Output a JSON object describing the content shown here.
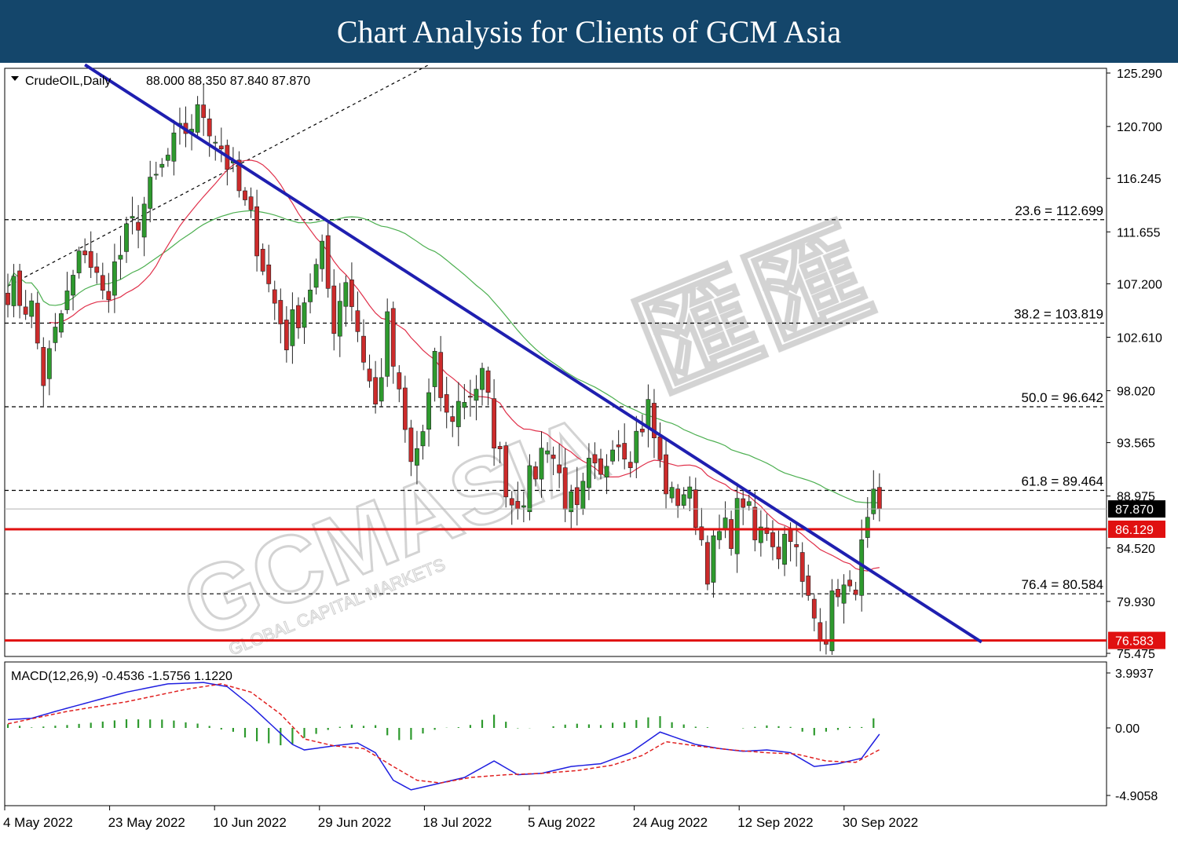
{
  "banner": {
    "title": "Chart Analysis for Clients of GCM Asia"
  },
  "watermark": {
    "logo": "GCMASIA",
    "tagline": "GLOBAL CAPITAL MARKETS",
    "chinese": "匯匯"
  },
  "chart_data": [
    {
      "type": "candlestick",
      "symbol_label": "CrudeOIL,Daily",
      "ohlc_label": "88.000 88.350 87.840 87.870",
      "y_ticks": [
        "125.290",
        "120.700",
        "116.245",
        "111.655",
        "107.200",
        "102.610",
        "98.020",
        "93.565",
        "88.975",
        "84.520",
        "79.930",
        "75.475"
      ],
      "ylim": [
        75.475,
        125.29
      ],
      "x_ticks": [
        "4 May 2022",
        "23 May 2022",
        "10 Jun 2022",
        "29 Jun 2022",
        "18 Jul 2022",
        "5 Aug 2022",
        "24 Aug 2022",
        "12 Sep 2022",
        "30 Sep 2022"
      ],
      "last_price": "87.870",
      "fib_levels": [
        {
          "label": "23.6 = 112.699",
          "value": 112.699
        },
        {
          "label": "38.2 = 103.819",
          "value": 103.819
        },
        {
          "label": "50.0 = 96.642",
          "value": 96.642
        },
        {
          "label": "61.8 = 89.464",
          "value": 89.464
        },
        {
          "label": "76.4 = 80.584",
          "value": 80.584
        }
      ],
      "support_resistance": [
        {
          "label": "86.129",
          "value": 86.129
        },
        {
          "label": "76.583",
          "value": 76.583
        }
      ],
      "trendline": {
        "start": [
          13,
          126.0
        ],
        "end": [
          147,
          79.0
        ]
      },
      "dashed_trendline": {
        "start": [
          0,
          107.0
        ],
        "end": [
          71,
          126.0
        ]
      },
      "colors": {
        "bull": "#2e9a2e",
        "bear": "#cc2b2b",
        "ma_fast": "#e0304a",
        "ma_slow": "#4caf50",
        "trendline": "#1f1fb0",
        "levels": "#e01010"
      },
      "close_anchors": [
        [
          0,
          107.0
        ],
        [
          4,
          105.0
        ],
        [
          6,
          99.0
        ],
        [
          9,
          104.5
        ],
        [
          13,
          110.5
        ],
        [
          16,
          106.0
        ],
        [
          20,
          111.0
        ],
        [
          24,
          115.0
        ],
        [
          27,
          118.0
        ],
        [
          30,
          120.5
        ],
        [
          33,
          122.0
        ],
        [
          36,
          119.0
        ],
        [
          39,
          115.0
        ],
        [
          42,
          111.0
        ],
        [
          44,
          107.0
        ],
        [
          47,
          102.5
        ],
        [
          50,
          106.0
        ],
        [
          53,
          109.5
        ],
        [
          55,
          104.0
        ],
        [
          57,
          108.0
        ],
        [
          60,
          101.0
        ],
        [
          62,
          96.5
        ],
        [
          64,
          103.5
        ],
        [
          66,
          97.0
        ],
        [
          68,
          91.5
        ],
        [
          70,
          94.5
        ],
        [
          72,
          100.0
        ],
        [
          74,
          95.5
        ],
        [
          77,
          97.5
        ],
        [
          80,
          99.0
        ],
        [
          83,
          92.0
        ],
        [
          85,
          88.5
        ],
        [
          88,
          90.0
        ],
        [
          91,
          94.0
        ],
        [
          94,
          89.0
        ],
        [
          96,
          87.0
        ],
        [
          98,
          91.0
        ],
        [
          100,
          90.0
        ],
        [
          102,
          94.5
        ],
        [
          105,
          93.0
        ],
        [
          108,
          96.5
        ],
        [
          110,
          91.5
        ],
        [
          112,
          88.5
        ],
        [
          114,
          89.5
        ],
        [
          116,
          87.5
        ],
        [
          118,
          83.0
        ],
        [
          120,
          85.5
        ],
        [
          122,
          86.0
        ],
        [
          124,
          89.0
        ],
        [
          126,
          85.0
        ],
        [
          128,
          86.5
        ],
        [
          130,
          84.5
        ],
        [
          132,
          86.5
        ],
        [
          134,
          81.0
        ],
        [
          136,
          78.5
        ],
        [
          138,
          77.5
        ],
        [
          140,
          81.5
        ],
        [
          142,
          80.0
        ],
        [
          144,
          84.0
        ],
        [
          146,
          88.0
        ],
        [
          147,
          87.87
        ]
      ]
    },
    {
      "type": "macd",
      "label": "MACD(12,26,9) -0.4536 -1.5756 1.1220",
      "y_ticks": [
        "3.9937",
        "0.00",
        "-4.9058"
      ],
      "ylim": [
        -4.9058,
        3.9937
      ],
      "macd_anchors": [
        [
          0,
          0.6
        ],
        [
          4,
          0.7
        ],
        [
          8,
          1.2
        ],
        [
          14,
          1.9
        ],
        [
          20,
          2.6
        ],
        [
          27,
          3.2
        ],
        [
          33,
          3.3
        ],
        [
          37,
          3.0
        ],
        [
          41,
          1.6
        ],
        [
          45,
          0.0
        ],
        [
          48,
          -1.2
        ],
        [
          50,
          -1.6
        ],
        [
          55,
          -1.3
        ],
        [
          59,
          -1.1
        ],
        [
          62,
          -1.8
        ],
        [
          65,
          -3.8
        ],
        [
          68,
          -4.5
        ],
        [
          72,
          -4.1
        ],
        [
          77,
          -3.6
        ],
        [
          82,
          -2.4
        ],
        [
          86,
          -3.4
        ],
        [
          90,
          -3.3
        ],
        [
          95,
          -2.8
        ],
        [
          100,
          -2.6
        ],
        [
          105,
          -1.8
        ],
        [
          110,
          -0.3
        ],
        [
          112,
          -0.6
        ],
        [
          116,
          -1.2
        ],
        [
          120,
          -1.5
        ],
        [
          124,
          -1.7
        ],
        [
          128,
          -1.6
        ],
        [
          132,
          -1.8
        ],
        [
          136,
          -2.8
        ],
        [
          140,
          -2.6
        ],
        [
          144,
          -2.2
        ],
        [
          147,
          -0.45
        ]
      ],
      "signal_anchors": [
        [
          0,
          0.3
        ],
        [
          10,
          1.2
        ],
        [
          20,
          1.9
        ],
        [
          30,
          2.8
        ],
        [
          36,
          3.2
        ],
        [
          41,
          2.6
        ],
        [
          46,
          1.0
        ],
        [
          50,
          -0.8
        ],
        [
          55,
          -1.3
        ],
        [
          60,
          -1.5
        ],
        [
          65,
          -2.8
        ],
        [
          69,
          -3.8
        ],
        [
          73,
          -4.0
        ],
        [
          78,
          -3.6
        ],
        [
          84,
          -3.4
        ],
        [
          90,
          -3.3
        ],
        [
          96,
          -3.1
        ],
        [
          102,
          -2.7
        ],
        [
          107,
          -2.0
        ],
        [
          111,
          -1.0
        ],
        [
          116,
          -1.3
        ],
        [
          122,
          -1.6
        ],
        [
          128,
          -1.8
        ],
        [
          133,
          -1.9
        ],
        [
          138,
          -2.4
        ],
        [
          143,
          -2.5
        ],
        [
          147,
          -1.58
        ]
      ]
    }
  ]
}
